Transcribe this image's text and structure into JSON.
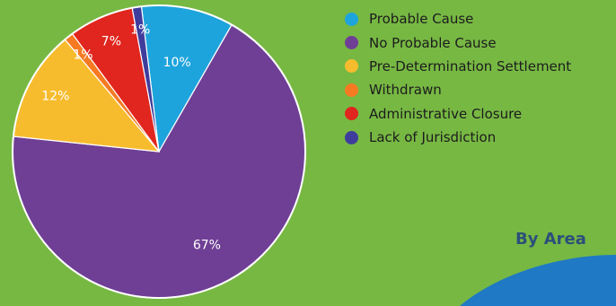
{
  "chart_data": {
    "type": "pie",
    "title": "",
    "slices": [
      {
        "label": "Probable Cause",
        "value": 10,
        "text": "10%",
        "color": "#1ea4dc"
      },
      {
        "label": "No Probable Cause",
        "value": 67,
        "text": "67%",
        "color": "#6f3f96"
      },
      {
        "label": "Pre-Determination Settlement",
        "value": 12,
        "text": "12%",
        "color": "#f7bc2d"
      },
      {
        "label": "Withdrawn",
        "value": 1,
        "text": "1%",
        "color": "#f57a22"
      },
      {
        "label": "Administrative Closure",
        "value": 7,
        "text": "7%",
        "color": "#e0261e"
      },
      {
        "label": "Lack of Jurisdiction",
        "value": 1,
        "text": "1%",
        "color": "#3f3d9c"
      }
    ],
    "legend_position": "right"
  },
  "section_heading": "By Area",
  "decor_color": "#1f79c4"
}
